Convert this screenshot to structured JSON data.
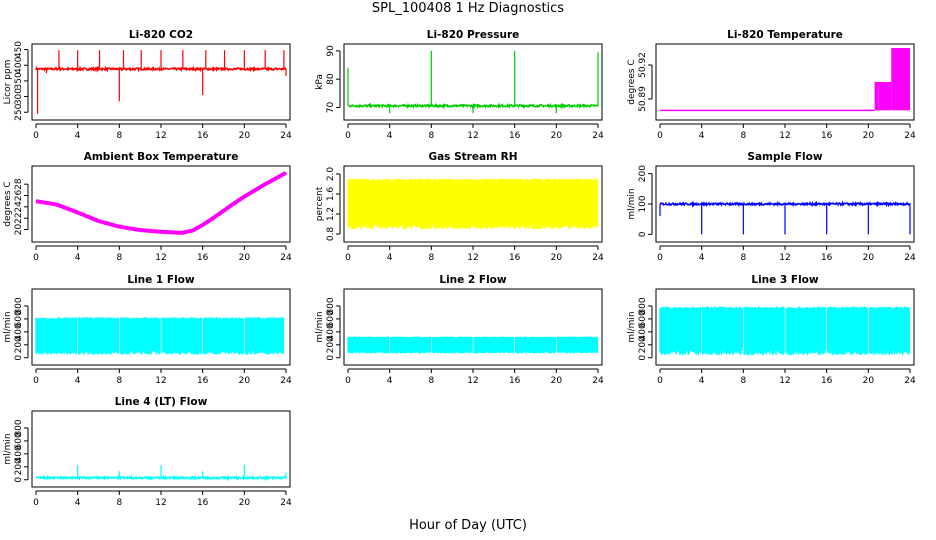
{
  "page": {
    "title": "SPL_100408  1 Hz Diagnostics",
    "xlabel": "Hour of Day (UTC)"
  },
  "chart_data": [
    {
      "type": "line",
      "title": "Li-820 CO2",
      "ylabel": "Licor ppm",
      "color": "#ff0000",
      "xlim": [
        0,
        24
      ],
      "ylim": [
        238,
        455
      ],
      "yticks": [
        250,
        300,
        350,
        400,
        450
      ],
      "xticks": [
        0,
        4,
        8,
        12,
        16,
        20,
        24
      ],
      "baseline": 388,
      "events": [
        {
          "x": 0.15,
          "y": 245
        },
        {
          "x": 1.0,
          "y": 375
        },
        {
          "x": 2.2,
          "y": 448
        },
        {
          "x": 4.0,
          "y": 448
        },
        {
          "x": 6.1,
          "y": 448
        },
        {
          "x": 8.0,
          "y": 285
        },
        {
          "x": 8.4,
          "y": 448
        },
        {
          "x": 10.1,
          "y": 448
        },
        {
          "x": 12.0,
          "y": 448
        },
        {
          "x": 14.1,
          "y": 448
        },
        {
          "x": 16.0,
          "y": 305
        },
        {
          "x": 16.3,
          "y": 448
        },
        {
          "x": 18.1,
          "y": 448
        },
        {
          "x": 20.0,
          "y": 448
        },
        {
          "x": 22.0,
          "y": 448
        },
        {
          "x": 23.8,
          "y": 448
        },
        {
          "x": 24.0,
          "y": 365
        }
      ]
    },
    {
      "type": "line",
      "title": "Li-820 Pressure",
      "ylabel": "kPa",
      "color": "#00cc00",
      "xlim": [
        0,
        24
      ],
      "ylim": [
        67,
        91
      ],
      "yticks": [
        70,
        80,
        90
      ],
      "xticks": [
        0,
        4,
        8,
        12,
        16,
        20,
        24
      ],
      "baseline": 70.6,
      "events": [
        {
          "x": 0.0,
          "y": 84
        },
        {
          "x": 4.0,
          "y": 68
        },
        {
          "x": 8.0,
          "y": 90
        },
        {
          "x": 12.0,
          "y": 68
        },
        {
          "x": 16.0,
          "y": 90
        },
        {
          "x": 20.0,
          "y": 68
        },
        {
          "x": 24.0,
          "y": 89.5
        }
      ]
    },
    {
      "type": "area",
      "title": "Li-820 Temperature",
      "ylabel": "degrees C",
      "color": "#ff00ff",
      "xlim": [
        0,
        24
      ],
      "ylim": [
        50.875,
        50.935
      ],
      "yticks": [
        50.89,
        50.92
      ],
      "ytick_labels": [
        "50.89",
        "50.92"
      ],
      "xticks": [
        0,
        4,
        8,
        12,
        16,
        20,
        24
      ],
      "baseline": 50.88,
      "segments": [
        {
          "x": [
            20.6,
            21.0
          ],
          "y": 50.905
        },
        {
          "x": [
            21.0,
            22.2
          ],
          "y": 50.905
        },
        {
          "x": [
            22.2,
            24.0
          ],
          "y": 50.935
        }
      ]
    },
    {
      "type": "line",
      "title": "Ambient Box Temperature",
      "ylabel": "degrees C",
      "color": "#ff00ff",
      "xlim": [
        0,
        24
      ],
      "ylim": [
        18.5,
        30.5
      ],
      "yticks": [
        20,
        22,
        24,
        26,
        28
      ],
      "xticks": [
        0,
        4,
        8,
        12,
        16,
        20,
        24
      ],
      "x": [
        0,
        2,
        4,
        6,
        8,
        10,
        12,
        14,
        15,
        16,
        17,
        18,
        19,
        20,
        22,
        24
      ],
      "y": [
        25.0,
        24.4,
        23.0,
        21.5,
        20.5,
        19.9,
        19.6,
        19.4,
        19.8,
        20.8,
        22.0,
        23.3,
        24.6,
        25.8,
        28.0,
        30.0
      ]
    },
    {
      "type": "band",
      "title": "Gas Stream RH",
      "ylabel": "percent",
      "color": "#ffff00",
      "xlim": [
        0,
        24
      ],
      "ylim": [
        0.72,
        2.08
      ],
      "yticks": [
        0.8,
        1.2,
        1.6,
        2.0
      ],
      "ytick_labels": [
        "0.8",
        "1.2",
        "1.6",
        "2.0"
      ],
      "xticks": [
        0,
        4,
        8,
        12,
        16,
        20,
        24
      ],
      "low": 0.95,
      "high": 1.88
    },
    {
      "type": "line",
      "title": "Sample Flow",
      "ylabel": "ml/min",
      "color": "#0000ff",
      "xlim": [
        0,
        24
      ],
      "ylim": [
        -12,
        212
      ],
      "yticks": [
        0,
        100,
        200
      ],
      "xticks": [
        0,
        4,
        8,
        12,
        16,
        20,
        24
      ],
      "baseline": 100,
      "events": [
        {
          "x": 0.0,
          "y": 60
        },
        {
          "x": 4.0,
          "y": 0
        },
        {
          "x": 8.0,
          "y": 0
        },
        {
          "x": 12.0,
          "y": 0
        },
        {
          "x": 16.0,
          "y": 0
        },
        {
          "x": 20.0,
          "y": 0
        },
        {
          "x": 24.0,
          "y": 0
        }
      ]
    },
    {
      "type": "band",
      "title": "Line 1 Flow",
      "ylabel": "ml/min",
      "color": "#00ffff",
      "xlim": [
        0,
        24
      ],
      "ylim": [
        -50,
        1000
      ],
      "yticks": [
        0,
        200,
        400,
        600,
        800
      ],
      "xticks": [
        0,
        4,
        8,
        12,
        16,
        20,
        24
      ],
      "low": 80,
      "high": 610,
      "gaps": [
        4.0,
        8.0,
        12.0,
        16.0,
        20.0
      ],
      "end_x": 23.8
    },
    {
      "type": "band",
      "title": "Line 2 Flow",
      "ylabel": "ml/min",
      "color": "#00ffff",
      "xlim": [
        0,
        24
      ],
      "ylim": [
        -50,
        1000
      ],
      "yticks": [
        0,
        200,
        400,
        600,
        800
      ],
      "xticks": [
        0,
        4,
        8,
        12,
        16,
        20,
        24
      ],
      "low": 80,
      "high": 320,
      "gaps": [
        4.0,
        8.0,
        12.0,
        16.0,
        20.0
      ],
      "end_x": 24.0
    },
    {
      "type": "band",
      "title": "Line 3 Flow",
      "ylabel": "ml/min",
      "color": "#00ffff",
      "xlim": [
        0,
        24
      ],
      "ylim": [
        -50,
        1000
      ],
      "yticks": [
        0,
        200,
        400,
        600,
        800
      ],
      "xticks": [
        0,
        4,
        8,
        12,
        16,
        20,
        24
      ],
      "low": 80,
      "high": 770,
      "gaps": [
        4.0,
        8.0,
        12.0,
        16.0,
        20.0
      ],
      "end_x": 24.0
    },
    {
      "type": "line",
      "title": "Line 4 (LT) Flow",
      "ylabel": "ml/min",
      "color": "#00ffff",
      "xlim": [
        0,
        24
      ],
      "ylim": [
        -50,
        1000
      ],
      "yticks": [
        0,
        200,
        400,
        600,
        800
      ],
      "xticks": [
        0,
        4,
        8,
        12,
        16,
        20,
        24
      ],
      "baseline": 30,
      "events": [
        {
          "x": 4.0,
          "y": 230
        },
        {
          "x": 8.0,
          "y": 130
        },
        {
          "x": 12.0,
          "y": 230
        },
        {
          "x": 16.0,
          "y": 130
        },
        {
          "x": 20.0,
          "y": 230
        },
        {
          "x": 24.0,
          "y": 110
        }
      ]
    }
  ]
}
